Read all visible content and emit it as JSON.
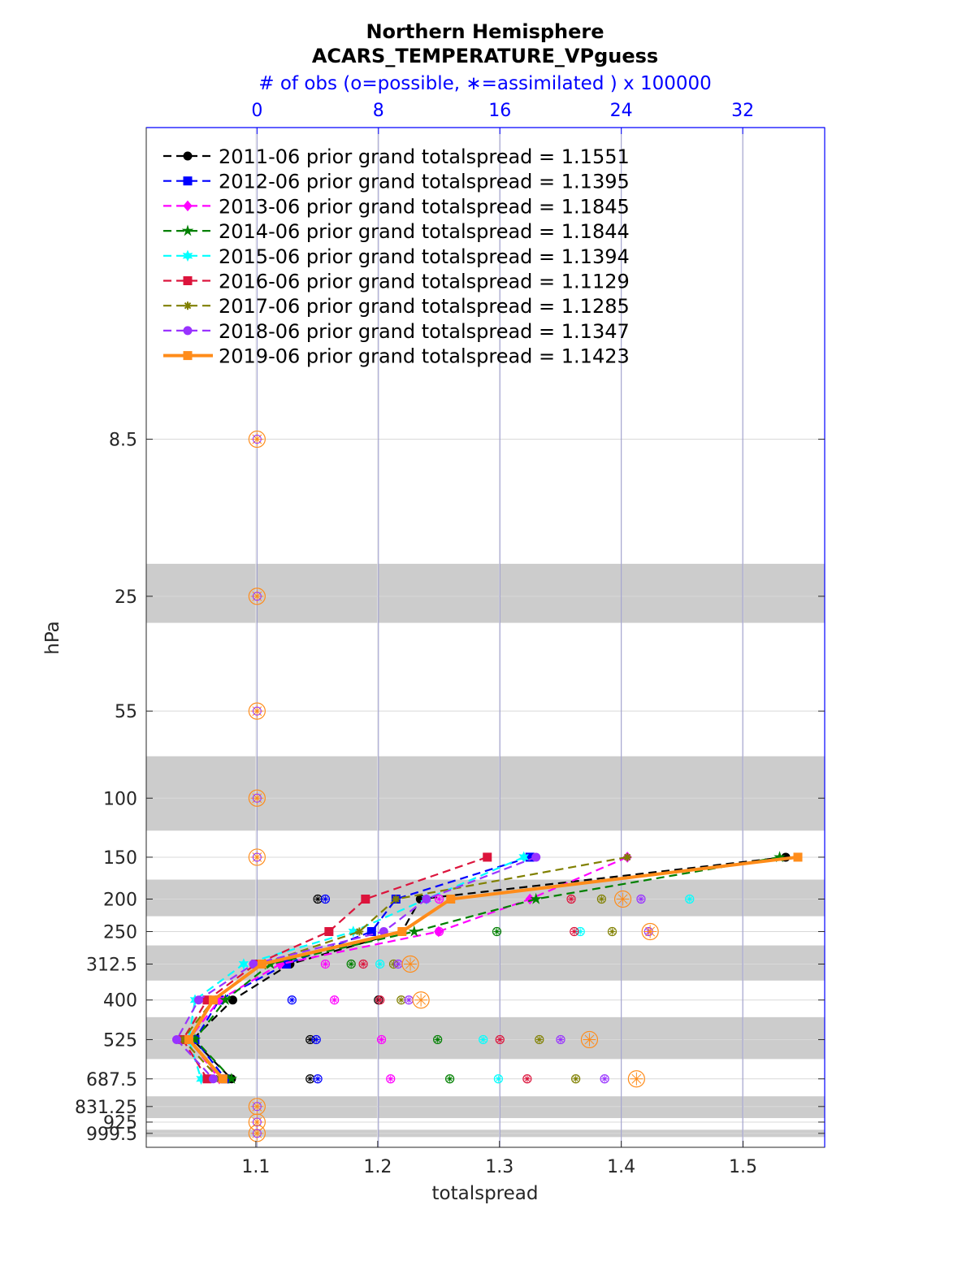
{
  "chart_data": {
    "type": "line",
    "title": "Northern Hemisphere",
    "subtitle": "ACARS_TEMPERATURE_VPguess",
    "top_axis_label": "# of obs (o=possible, ∗=assimilated ) x 100000",
    "xlabel": "totalspread",
    "ylabel": "hPa",
    "xlim": [
      1.01,
      1.567
    ],
    "x_ticks": [
      "1.1",
      "1.2",
      "1.3",
      "1.4",
      "1.5"
    ],
    "x_tick_values": [
      1.1,
      1.2,
      1.3,
      1.4,
      1.5
    ],
    "top_xlim": [
      -7.3,
      37.4
    ],
    "top_ticks": [
      "0",
      "8",
      "16",
      "24",
      "32"
    ],
    "top_tick_values": [
      0,
      8,
      16,
      24,
      32
    ],
    "y_scale": "log, reversed",
    "ylim": [
      1100,
      1
    ],
    "y_ticks": [
      "8.5",
      "25",
      "55",
      "100",
      "150",
      "200",
      "250",
      "312.5",
      "400",
      "525",
      "687.5",
      "831.25",
      "925",
      "999.5"
    ],
    "y_tick_values": [
      8.5,
      25,
      55,
      100,
      150,
      200,
      250,
      312.5,
      400,
      525,
      687.5,
      831.25,
      925,
      999.5
    ],
    "shaded_layers_hPa": [
      [
        20,
        30
      ],
      [
        75,
        125
      ],
      [
        175,
        225
      ],
      [
        275,
        350
      ],
      [
        450,
        600
      ],
      [
        775,
        900
      ],
      [
        975,
        1025
      ]
    ],
    "grid": true,
    "legend_position": "top-left",
    "levels": [
      150,
      200,
      250,
      312.5,
      400,
      525,
      687.5
    ],
    "series": [
      {
        "name": "2011-06 prior grand totalspread = 1.1551",
        "color": "#000000",
        "marker": "circle",
        "style": "dashed",
        "values": [
          1.535,
          1.235,
          1.22,
          1.128,
          1.081,
          1.048,
          1.08
        ],
        "obs_possible": [
          null,
          4.0,
          null,
          null,
          8.0,
          3.5,
          3.5
        ],
        "obs_assimilated": [
          null,
          4.0,
          null,
          null,
          8.0,
          3.5,
          3.5
        ]
      },
      {
        "name": "2012-06 prior grand totalspread = 1.1395",
        "color": "#0000ff",
        "marker": "square",
        "style": "dashed",
        "values": [
          1.325,
          1.215,
          1.195,
          1.125,
          1.07,
          1.05,
          1.075
        ],
        "obs_possible": [
          null,
          4.5,
          null,
          null,
          2.3,
          3.9,
          4.0
        ],
        "obs_assimilated": [
          null,
          4.5,
          null,
          null,
          2.3,
          3.9,
          4.0
        ]
      },
      {
        "name": "2013-06 prior grand totalspread = 1.1845",
        "color": "#ff00ff",
        "marker": "diamond",
        "style": "dashed",
        "values": [
          1.405,
          1.325,
          1.25,
          1.12,
          1.07,
          1.045,
          1.07
        ],
        "obs_possible": [
          null,
          12.0,
          12.0,
          4.5,
          5.1,
          8.2,
          8.8
        ],
        "obs_assimilated": [
          null,
          12.0,
          12.0,
          4.5,
          5.1,
          8.2,
          8.8
        ]
      },
      {
        "name": "2014-06 prior grand totalspread = 1.1844",
        "color": "#008000",
        "marker": "star",
        "style": "dashed",
        "values": [
          1.53,
          1.33,
          1.23,
          1.112,
          1.075,
          1.05,
          1.08
        ],
        "obs_possible": [
          null,
          null,
          15.8,
          6.2,
          null,
          11.9,
          12.7
        ],
        "obs_assimilated": [
          null,
          null,
          15.8,
          6.2,
          null,
          11.9,
          12.7
        ]
      },
      {
        "name": "2015-06 prior grand totalspread = 1.1394",
        "color": "#00ffff",
        "marker": "hexagram",
        "style": "dashed",
        "values": [
          1.32,
          1.24,
          1.18,
          1.09,
          1.05,
          1.045,
          1.055
        ],
        "obs_possible": [
          null,
          28.5,
          21.3,
          8.1,
          null,
          14.9,
          15.9
        ],
        "obs_assimilated": [
          null,
          28.5,
          21.3,
          8.1,
          null,
          14.9,
          15.9
        ]
      },
      {
        "name": "2016-06 prior grand totalspread = 1.1129",
        "color": "#dc143c",
        "marker": "square",
        "style": "dashed",
        "values": [
          1.29,
          1.19,
          1.16,
          1.1,
          1.06,
          1.04,
          1.06
        ],
        "obs_possible": [
          null,
          20.7,
          20.9,
          7.0,
          8.1,
          16.0,
          17.8
        ],
        "obs_assimilated": [
          null,
          20.7,
          20.9,
          7.0,
          8.1,
          16.0,
          17.8
        ]
      },
      {
        "name": "2017-06 prior grand totalspread = 1.1285",
        "color": "#808000",
        "marker": "asterisk",
        "style": "dashed",
        "values": [
          1.405,
          1.215,
          1.185,
          1.105,
          1.065,
          1.04,
          1.07
        ],
        "obs_possible": [
          null,
          22.7,
          23.4,
          9.0,
          9.5,
          18.6,
          21.0
        ],
        "obs_assimilated": [
          null,
          22.7,
          23.4,
          9.0,
          9.5,
          18.6,
          21.0
        ]
      },
      {
        "name": "2018-06 prior grand totalspread = 1.1347",
        "color": "#9933ff",
        "marker": "circle",
        "style": "dashed",
        "values": [
          1.33,
          1.24,
          1.205,
          1.098,
          1.053,
          1.035,
          1.065
        ],
        "obs_possible": [
          null,
          25.3,
          25.8,
          9.3,
          10.0,
          20.0,
          22.9
        ],
        "obs_assimilated": [
          null,
          25.3,
          25.8,
          9.3,
          10.0,
          20.0,
          22.9
        ]
      },
      {
        "name": "2019-06 prior grand totalspread = 1.1423",
        "color": "#ff8c1a",
        "marker": "square",
        "style": "solid",
        "values": [
          1.545,
          1.26,
          1.22,
          1.105,
          1.065,
          1.045,
          1.073
        ],
        "obs_possible": [
          0.0,
          24.1,
          25.9,
          10.1,
          10.8,
          21.9,
          25.0
        ],
        "obs_assimilated": [
          0.0,
          24.1,
          25.9,
          10.1,
          10.8,
          21.9,
          25.0
        ]
      }
    ],
    "zero_obs_levels_hPa": [
      8.5,
      25,
      55,
      100,
      150,
      831.25,
      925,
      999.5
    ]
  }
}
